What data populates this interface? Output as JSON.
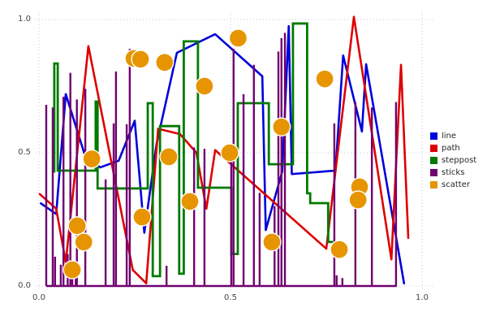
{
  "axes": {
    "x_ticks": [
      "0.0",
      "0.5",
      "1.0"
    ],
    "y_ticks": [
      "0.0",
      "0.5",
      "1.0"
    ]
  },
  "legend": {
    "position": "right",
    "items": [
      {
        "label": "line"
      },
      {
        "label": "path"
      },
      {
        "label": "steppost"
      },
      {
        "label": "sticks"
      },
      {
        "label": "scatter"
      }
    ]
  },
  "chart_data": {
    "type": "line",
    "title": "",
    "xlabel": "",
    "ylabel": "",
    "xlim": [
      -0.01,
      1.03
    ],
    "ylim": [
      -0.02,
      1.04
    ],
    "grid": true,
    "grid_style": "dotted",
    "grid_color": "#c9c9d4",
    "background": "#ffffff",
    "x_tick_values": [
      0,
      0.5,
      1.0
    ],
    "y_tick_values": [
      0,
      0.5,
      1.0
    ],
    "marker_radius": 11,
    "series": [
      {
        "name": "line",
        "style": "line",
        "color": "#0000dc",
        "width": 2.6,
        "points": [
          [
            0.005,
            0.31
          ],
          [
            0.045,
            0.27
          ],
          [
            0.07,
            0.72
          ],
          [
            0.12,
            0.49
          ],
          [
            0.16,
            0.445
          ],
          [
            0.208,
            0.47
          ],
          [
            0.25,
            0.62
          ],
          [
            0.275,
            0.2
          ],
          [
            0.307,
            0.533
          ],
          [
            0.36,
            0.875
          ],
          [
            0.46,
            0.945
          ],
          [
            0.583,
            0.787
          ],
          [
            0.592,
            0.21
          ],
          [
            0.635,
            0.43
          ],
          [
            0.652,
            0.975
          ],
          [
            0.66,
            0.42
          ],
          [
            0.774,
            0.433
          ],
          [
            0.794,
            0.865
          ],
          [
            0.843,
            0.58
          ],
          [
            0.854,
            0.832
          ],
          [
            0.953,
            0.01
          ]
        ]
      },
      {
        "name": "path",
        "style": "line",
        "color": "#de0000",
        "width": 2.6,
        "points": [
          [
            0.002,
            0.345
          ],
          [
            0.045,
            0.29
          ],
          [
            0.07,
            0.09
          ],
          [
            0.129,
            0.9
          ],
          [
            0.245,
            0.06
          ],
          [
            0.28,
            0.01
          ],
          [
            0.311,
            0.59
          ],
          [
            0.368,
            0.57
          ],
          [
            0.411,
            0.5
          ],
          [
            0.437,
            0.29
          ],
          [
            0.46,
            0.51
          ],
          [
            0.75,
            0.14
          ],
          [
            0.822,
            1.01
          ],
          [
            0.92,
            0.1
          ],
          [
            0.945,
            0.83
          ],
          [
            0.964,
            0.18
          ]
        ]
      },
      {
        "name": "steppost",
        "style": "steps-post",
        "color": "#007a00",
        "width": 2.8,
        "points": [
          [
            0.036,
            0.43
          ],
          [
            0.04,
            0.835
          ],
          [
            0.049,
            0.433
          ],
          [
            0.148,
            0.692
          ],
          [
            0.153,
            0.366
          ],
          [
            0.284,
            0.686
          ],
          [
            0.297,
            0.037
          ],
          [
            0.316,
            0.6
          ],
          [
            0.366,
            0.046
          ],
          [
            0.378,
            0.918
          ],
          [
            0.415,
            0.369
          ],
          [
            0.502,
            0.12
          ],
          [
            0.519,
            0.686
          ],
          [
            0.6,
            0.457
          ],
          [
            0.663,
            0.985
          ],
          [
            0.7,
            0.348
          ],
          [
            0.708,
            0.311
          ],
          [
            0.755,
            0.165
          ],
          [
            0.768,
            0.165
          ]
        ]
      },
      {
        "name": "sticks",
        "style": "sticks",
        "color": "#700070",
        "width": 2.4,
        "baseline": [
          0.019,
          0.934
        ],
        "points": [
          [
            0.019,
            0.68
          ],
          [
            0.036,
            0.67
          ],
          [
            0.042,
            0.11
          ],
          [
            0.057,
            0.08
          ],
          [
            0.064,
            0.71
          ],
          [
            0.075,
            0.12
          ],
          [
            0.082,
            0.8
          ],
          [
            0.087,
            0.04
          ],
          [
            0.096,
            0.04
          ],
          [
            0.099,
            0.7
          ],
          [
            0.121,
            0.74
          ],
          [
            0.174,
            0.4
          ],
          [
            0.195,
            0.61
          ],
          [
            0.201,
            0.805
          ],
          [
            0.229,
            0.607
          ],
          [
            0.237,
            0.89
          ],
          [
            0.333,
            0.076
          ],
          [
            0.405,
            0.52
          ],
          [
            0.432,
            0.515
          ],
          [
            0.502,
            0.49
          ],
          [
            0.508,
            0.89
          ],
          [
            0.534,
            0.72
          ],
          [
            0.561,
            0.83
          ],
          [
            0.576,
            0.35
          ],
          [
            0.615,
            0.3
          ],
          [
            0.625,
            0.88
          ],
          [
            0.633,
            0.93
          ],
          [
            0.642,
            0.95
          ],
          [
            0.771,
            0.61
          ],
          [
            0.777,
            0.04
          ],
          [
            0.792,
            0.03
          ],
          [
            0.826,
            0.69
          ],
          [
            0.869,
            0.67
          ],
          [
            0.932,
            0.69
          ]
        ]
      },
      {
        "name": "scatter",
        "style": "scatter",
        "color": "#e69500",
        "width": 0,
        "points": [
          [
            0.248,
            0.854
          ],
          [
            0.265,
            0.851
          ],
          [
            0.328,
            0.839
          ],
          [
            0.432,
            0.75
          ],
          [
            0.52,
            0.93
          ],
          [
            0.746,
            0.777
          ],
          [
            0.633,
            0.597
          ],
          [
            0.138,
            0.477
          ],
          [
            0.339,
            0.485
          ],
          [
            0.498,
            0.5
          ],
          [
            0.269,
            0.259
          ],
          [
            0.394,
            0.317
          ],
          [
            0.1,
            0.226
          ],
          [
            0.117,
            0.165
          ],
          [
            0.087,
            0.061
          ],
          [
            0.608,
            0.165
          ],
          [
            0.784,
            0.137
          ],
          [
            0.837,
            0.372
          ],
          [
            0.833,
            0.323
          ]
        ]
      }
    ]
  }
}
